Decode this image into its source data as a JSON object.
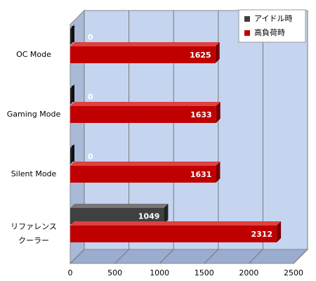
{
  "chart_data": {
    "type": "bar3d",
    "categories": [
      "OC Mode",
      "Gaming Mode",
      "Silent Mode",
      "リファレンス\nクーラー"
    ],
    "series": [
      {
        "name": "アイドル時",
        "color": "#404040",
        "values": [
          0,
          0,
          0,
          1049
        ]
      },
      {
        "name": "高負荷時",
        "color": "#c00000",
        "values": [
          1625,
          1633,
          1631,
          2312
        ]
      }
    ],
    "xlim": [
      0,
      2500
    ],
    "xticks": [
      0,
      500,
      1000,
      1500,
      2000,
      2500
    ],
    "grid": true,
    "legend": "top-right"
  }
}
